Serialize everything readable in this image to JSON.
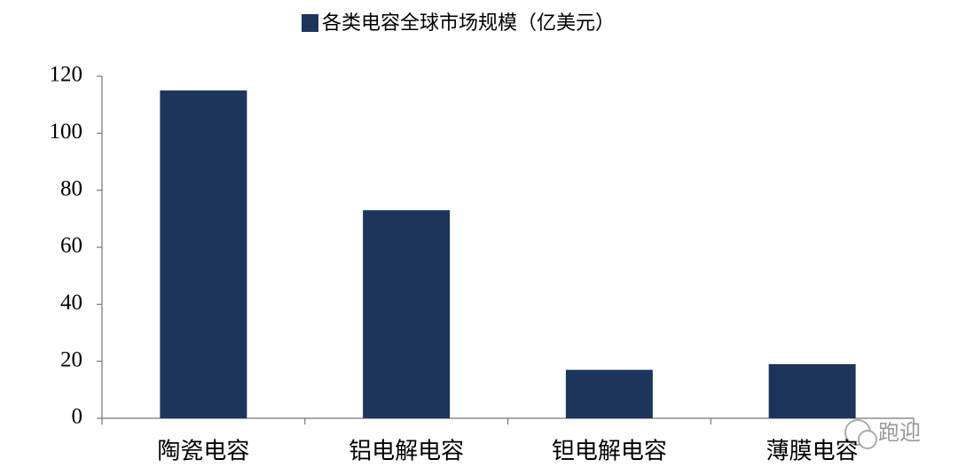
{
  "chart_data": {
    "type": "bar",
    "legend": "各类电容全球市场规模（亿美元）",
    "categories": [
      "陶瓷电容",
      "铝电解电容",
      "钽电解电容",
      "薄膜电容"
    ],
    "values": [
      115,
      73,
      17,
      19
    ],
    "color": "#1d355c",
    "ylim": [
      0,
      120
    ],
    "yticks": [
      0,
      20,
      40,
      60,
      80,
      100,
      120
    ],
    "grid": false,
    "watermark": "跑迎"
  }
}
